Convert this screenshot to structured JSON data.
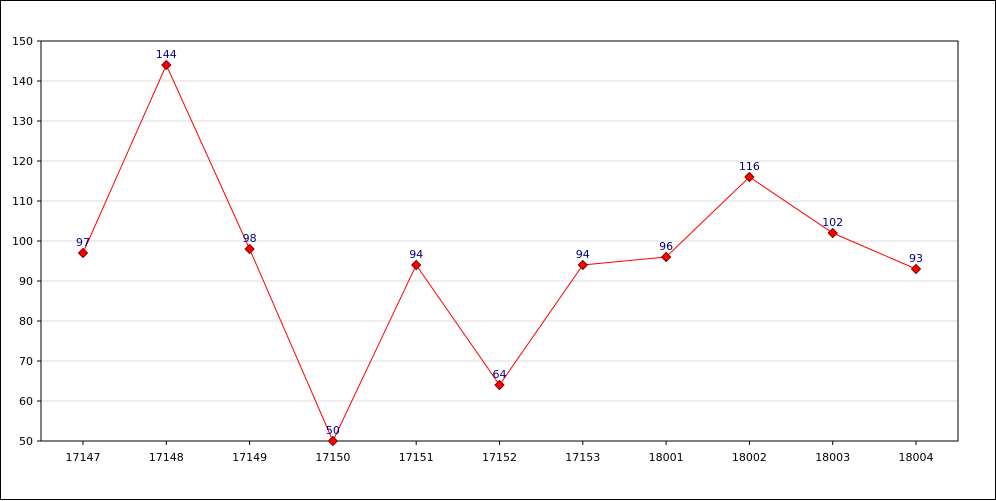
{
  "chart_data": {
    "type": "line",
    "title": "",
    "xlabel": "",
    "ylabel": "",
    "categories": [
      "17147",
      "17148",
      "17149",
      "17150",
      "17151",
      "17152",
      "17153",
      "18001",
      "18002",
      "18003",
      "18004"
    ],
    "series": [
      {
        "values": [
          97,
          144,
          98,
          50,
          94,
          64,
          94,
          96,
          116,
          102,
          93
        ]
      }
    ],
    "ylim": [
      50,
      150
    ],
    "yticks": [
      50,
      60,
      70,
      80,
      90,
      100,
      110,
      120,
      130,
      140,
      150
    ],
    "grid": true,
    "legend": "none",
    "colors": {
      "line": "#ff0000",
      "marker_fill": "#ff0000",
      "marker_stroke": "#800000",
      "data_label": "#000080",
      "grid": "#dddddd",
      "axis": "#000000"
    }
  }
}
